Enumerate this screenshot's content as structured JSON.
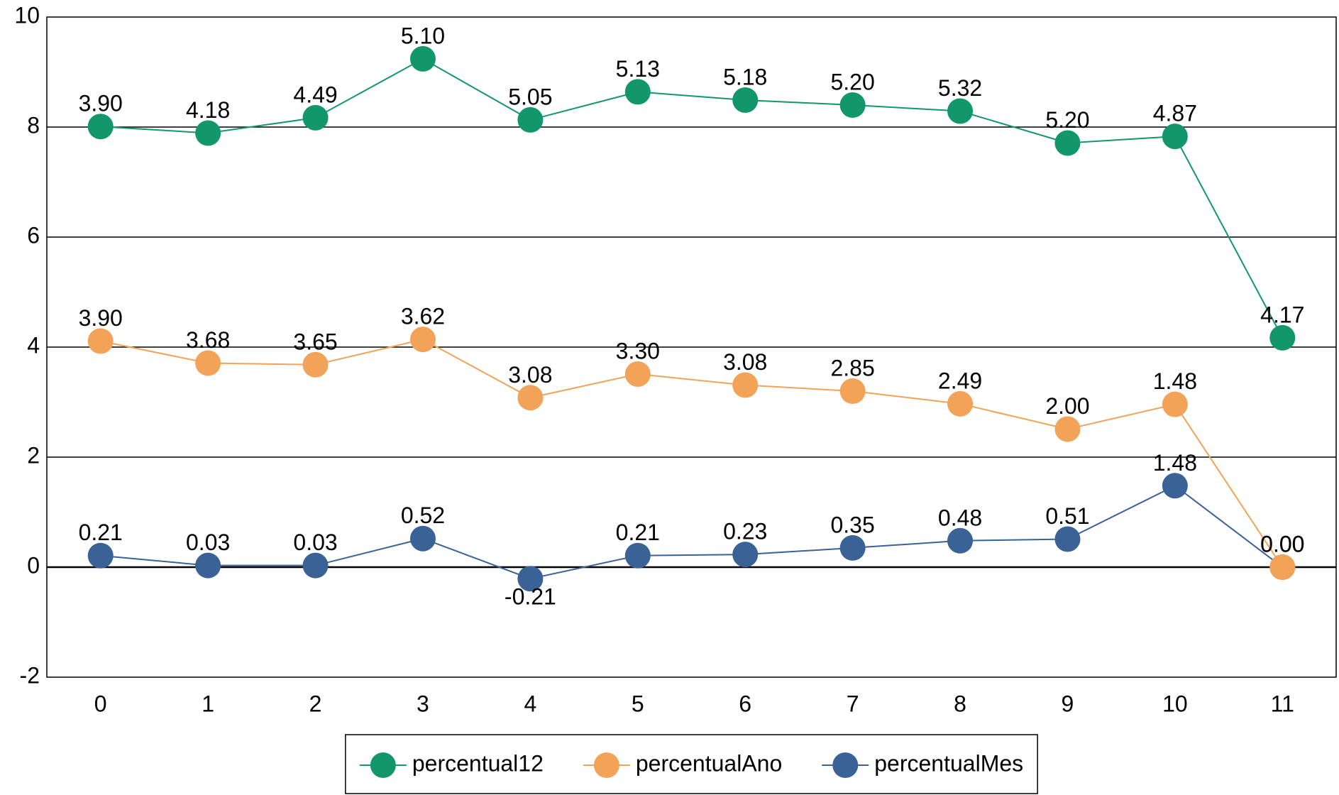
{
  "chart_data": {
    "type": "line",
    "stacked": true,
    "categories": [
      "0",
      "1",
      "2",
      "3",
      "4",
      "5",
      "6",
      "7",
      "8",
      "9",
      "10",
      "11"
    ],
    "series": [
      {
        "name": "percentual12",
        "color": "#12976b",
        "values": [
          3.9,
          4.18,
          4.49,
          5.1,
          5.05,
          5.13,
          5.18,
          5.2,
          5.32,
          5.2,
          4.87,
          4.17
        ],
        "value_labels": [
          "3.90",
          "4.18",
          "4.49",
          "5.10",
          "5.05",
          "5.13",
          "5.18",
          "5.20",
          "5.32",
          "5.20",
          "4.87",
          "4.17"
        ]
      },
      {
        "name": "percentualAno",
        "color": "#f2a358",
        "values": [
          3.9,
          3.68,
          3.65,
          3.62,
          3.08,
          3.3,
          3.08,
          2.85,
          2.49,
          2.0,
          1.48,
          0
        ],
        "value_labels": [
          "3.90",
          "3.68",
          "3.65",
          "3.62",
          "3.08",
          "3.30",
          "3.08",
          "2.85",
          "2.49",
          "2.00",
          "1.48",
          "0.00"
        ]
      },
      {
        "name": "percentualMes",
        "color": "#3a6296",
        "values": [
          0.21,
          0.03,
          0.03,
          0.52,
          -0.21,
          0.21,
          0.23,
          0.35,
          0.48,
          0.51,
          1.48,
          0
        ],
        "value_labels": [
          "0.21",
          "0.03",
          "0.03",
          "0.52",
          "-0.21",
          "0.21",
          "0.23",
          "0.35",
          "0.48",
          "0.51",
          "1.48",
          "0.00"
        ]
      }
    ],
    "ylim": [
      -2,
      10
    ],
    "yticks": [
      -2,
      0,
      2,
      4,
      6,
      8,
      10
    ],
    "grid": true,
    "legend": "bottom"
  }
}
